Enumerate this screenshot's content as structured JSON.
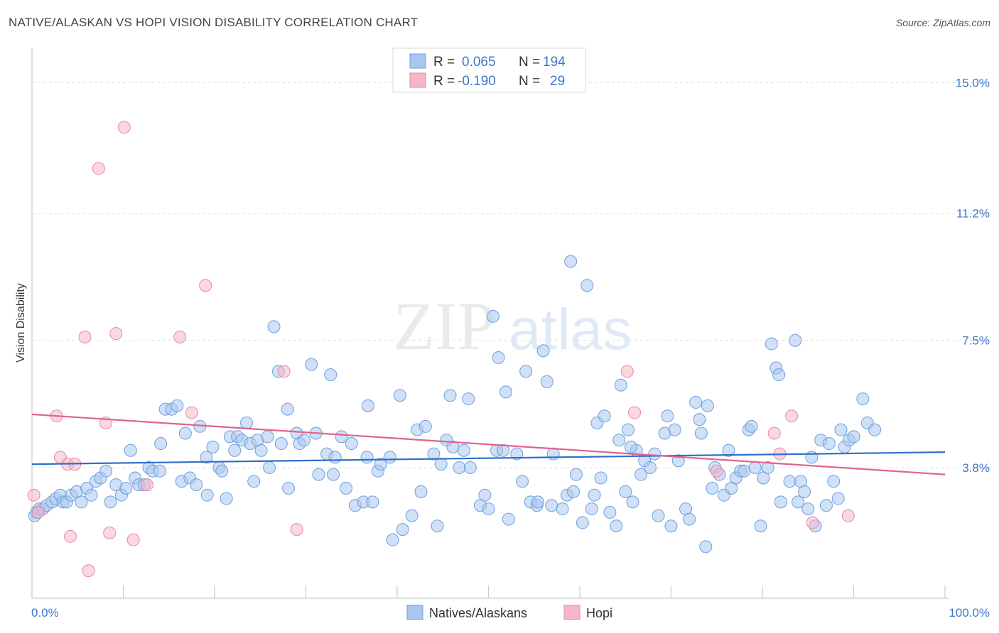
{
  "title": "NATIVE/ALASKAN VS HOPI VISION DISABILITY CORRELATION CHART",
  "source": "Source: ZipAtlas.com",
  "watermark": {
    "zip": "ZIP",
    "atlas": "atlas"
  },
  "chart_data": {
    "type": "scatter",
    "title": "NATIVE/ALASKAN VS HOPI VISION DISABILITY CORRELATION CHART",
    "xlabel": "",
    "ylabel": "Vision Disability",
    "xlim": [
      0,
      100
    ],
    "ylim": [
      0,
      16
    ],
    "x_tick_labels": [
      {
        "value": 0,
        "label": "0.0%"
      },
      {
        "value": 100,
        "label": "100.0%"
      }
    ],
    "y_ticks": [
      {
        "value": 3.8,
        "label": "3.8%"
      },
      {
        "value": 7.5,
        "label": "7.5%"
      },
      {
        "value": 11.2,
        "label": "11.2%"
      },
      {
        "value": 15.0,
        "label": "15.0%"
      }
    ],
    "grid": true,
    "legend_top": [
      {
        "r_label": "R =",
        "r": "0.065",
        "n_label": "N =",
        "n": "194",
        "color": "#a9c7ee"
      },
      {
        "r_label": "R =",
        "r": "-0.190",
        "n_label": "N =",
        "n": "29",
        "color": "#f5b6c8"
      }
    ],
    "series": [
      {
        "name": "Natives/Alaskans",
        "color": "#a9c7ee",
        "stroke": "#6d9fdc",
        "trend": {
          "x": [
            0,
            100
          ],
          "y": [
            3.9,
            4.25
          ],
          "color": "#2f6fcc"
        },
        "points": [
          [
            0.3,
            2.4
          ],
          [
            0.5,
            2.5
          ],
          [
            0.8,
            2.6
          ],
          [
            1.2,
            2.6
          ],
          [
            1.6,
            2.7
          ],
          [
            2.2,
            2.8
          ],
          [
            2.6,
            2.9
          ],
          [
            3.1,
            3.0
          ],
          [
            3.4,
            2.8
          ],
          [
            3.8,
            2.8
          ],
          [
            4.3,
            3.0
          ],
          [
            4.9,
            3.1
          ],
          [
            5.4,
            2.8
          ],
          [
            6.0,
            3.2
          ],
          [
            6.5,
            3.0
          ],
          [
            7.0,
            3.4
          ],
          [
            7.5,
            3.5
          ],
          [
            8.1,
            3.7
          ],
          [
            8.6,
            2.8
          ],
          [
            9.2,
            3.3
          ],
          [
            9.8,
            3.0
          ],
          [
            10.3,
            3.2
          ],
          [
            10.8,
            4.3
          ],
          [
            11.3,
            3.5
          ],
          [
            11.7,
            3.3
          ],
          [
            12.3,
            3.3
          ],
          [
            12.8,
            3.8
          ],
          [
            13.2,
            3.7
          ],
          [
            14.0,
            3.7
          ],
          [
            14.1,
            4.5
          ],
          [
            14.6,
            5.5
          ],
          [
            15.3,
            5.5
          ],
          [
            15.9,
            5.6
          ],
          [
            16.4,
            3.4
          ],
          [
            16.8,
            4.8
          ],
          [
            17.3,
            3.5
          ],
          [
            18.0,
            3.3
          ],
          [
            18.4,
            5.0
          ],
          [
            19.1,
            4.1
          ],
          [
            19.2,
            3.0
          ],
          [
            19.8,
            4.4
          ],
          [
            20.5,
            3.8
          ],
          [
            20.8,
            3.7
          ],
          [
            21.7,
            4.7
          ],
          [
            22.2,
            4.3
          ],
          [
            22.5,
            4.7
          ],
          [
            23.0,
            4.6
          ],
          [
            23.5,
            5.1
          ],
          [
            23.9,
            4.5
          ],
          [
            24.3,
            3.4
          ],
          [
            24.7,
            4.6
          ],
          [
            25.1,
            4.3
          ],
          [
            25.8,
            4.7
          ],
          [
            26.0,
            3.8
          ],
          [
            26.5,
            7.9
          ],
          [
            27.0,
            6.6
          ],
          [
            27.3,
            4.5
          ],
          [
            28.0,
            5.5
          ],
          [
            28.1,
            3.2
          ],
          [
            29.0,
            4.8
          ],
          [
            29.3,
            4.5
          ],
          [
            29.8,
            4.6
          ],
          [
            30.6,
            6.8
          ],
          [
            31.1,
            4.8
          ],
          [
            31.4,
            3.6
          ],
          [
            32.3,
            4.2
          ],
          [
            32.7,
            6.5
          ],
          [
            33.0,
            3.6
          ],
          [
            33.9,
            4.7
          ],
          [
            34.4,
            3.2
          ],
          [
            35.0,
            4.5
          ],
          [
            35.4,
            2.7
          ],
          [
            36.3,
            2.8
          ],
          [
            36.7,
            4.1
          ],
          [
            36.8,
            5.6
          ],
          [
            37.3,
            2.8
          ],
          [
            37.9,
            3.7
          ],
          [
            38.2,
            3.9
          ],
          [
            39.2,
            4.1
          ],
          [
            39.5,
            1.7
          ],
          [
            40.3,
            5.9
          ],
          [
            40.6,
            2.0
          ],
          [
            41.6,
            2.4
          ],
          [
            42.2,
            4.9
          ],
          [
            42.6,
            3.1
          ],
          [
            43.1,
            5.0
          ],
          [
            44.0,
            4.2
          ],
          [
            44.4,
            2.1
          ],
          [
            44.8,
            3.9
          ],
          [
            45.4,
            4.6
          ],
          [
            45.8,
            5.9
          ],
          [
            46.1,
            4.4
          ],
          [
            46.8,
            3.8
          ],
          [
            47.3,
            4.3
          ],
          [
            47.8,
            5.8
          ],
          [
            48.0,
            3.8
          ],
          [
            49.1,
            2.7
          ],
          [
            49.6,
            3.0
          ],
          [
            50.0,
            2.6
          ],
          [
            50.5,
            8.2
          ],
          [
            50.9,
            4.3
          ],
          [
            51.1,
            7.0
          ],
          [
            51.6,
            4.3
          ],
          [
            51.9,
            6.0
          ],
          [
            52.2,
            2.3
          ],
          [
            53.1,
            4.2
          ],
          [
            53.7,
            3.4
          ],
          [
            54.1,
            6.6
          ],
          [
            54.6,
            2.8
          ],
          [
            55.3,
            2.7
          ],
          [
            55.4,
            2.8
          ],
          [
            56.0,
            7.2
          ],
          [
            56.4,
            6.3
          ],
          [
            57.1,
            4.2
          ],
          [
            58.1,
            2.6
          ],
          [
            58.6,
            3.0
          ],
          [
            59.0,
            9.8
          ],
          [
            59.3,
            3.1
          ],
          [
            59.6,
            3.6
          ],
          [
            60.3,
            2.2
          ],
          [
            60.8,
            9.1
          ],
          [
            61.3,
            2.6
          ],
          [
            61.6,
            3.0
          ],
          [
            61.9,
            5.1
          ],
          [
            62.3,
            3.5
          ],
          [
            62.7,
            5.3
          ],
          [
            63.3,
            2.5
          ],
          [
            64.0,
            2.1
          ],
          [
            64.3,
            4.6
          ],
          [
            64.5,
            6.2
          ],
          [
            65.0,
            3.1
          ],
          [
            65.3,
            4.9
          ],
          [
            65.8,
            2.8
          ],
          [
            66.2,
            4.3
          ],
          [
            66.7,
            3.6
          ],
          [
            67.1,
            4.0
          ],
          [
            67.7,
            3.8
          ],
          [
            68.2,
            4.2
          ],
          [
            68.6,
            2.4
          ],
          [
            69.3,
            4.8
          ],
          [
            69.6,
            5.3
          ],
          [
            70.0,
            2.1
          ],
          [
            70.4,
            4.9
          ],
          [
            70.8,
            4.0
          ],
          [
            71.6,
            2.6
          ],
          [
            72.0,
            2.3
          ],
          [
            72.7,
            5.7
          ],
          [
            73.1,
            5.2
          ],
          [
            73.3,
            4.8
          ],
          [
            74.0,
            5.6
          ],
          [
            74.5,
            3.2
          ],
          [
            74.8,
            3.8
          ],
          [
            75.3,
            3.6
          ],
          [
            75.8,
            3.0
          ],
          [
            76.3,
            4.3
          ],
          [
            76.6,
            3.2
          ],
          [
            77.1,
            3.5
          ],
          [
            77.6,
            3.7
          ],
          [
            78.0,
            3.7
          ],
          [
            78.5,
            4.9
          ],
          [
            78.8,
            5.0
          ],
          [
            79.2,
            3.8
          ],
          [
            79.8,
            2.1
          ],
          [
            80.1,
            3.5
          ],
          [
            80.6,
            3.8
          ],
          [
            81.0,
            7.4
          ],
          [
            81.5,
            6.7
          ],
          [
            81.8,
            6.5
          ],
          [
            82.0,
            2.8
          ],
          [
            83.0,
            3.4
          ],
          [
            83.6,
            7.5
          ],
          [
            83.9,
            2.8
          ],
          [
            84.2,
            3.4
          ],
          [
            84.6,
            3.1
          ],
          [
            85.0,
            2.6
          ],
          [
            85.4,
            4.1
          ],
          [
            85.8,
            2.1
          ],
          [
            86.4,
            4.6
          ],
          [
            87.0,
            2.7
          ],
          [
            87.3,
            4.5
          ],
          [
            87.8,
            3.4
          ],
          [
            88.3,
            2.9
          ],
          [
            88.6,
            4.9
          ],
          [
            89.0,
            4.4
          ],
          [
            89.5,
            4.6
          ],
          [
            90.0,
            4.7
          ],
          [
            91.0,
            5.8
          ],
          [
            91.5,
            5.1
          ],
          [
            92.3,
            4.9
          ],
          [
            65.6,
            4.4
          ],
          [
            73.8,
            1.5
          ],
          [
            56.9,
            2.7
          ],
          [
            33.2,
            4.1
          ],
          [
            21.3,
            2.9
          ]
        ]
      },
      {
        "name": "Hopi",
        "color": "#f5b6c8",
        "stroke": "#e68aa5",
        "trend": {
          "x": [
            0,
            100
          ],
          "y": [
            5.35,
            3.6
          ],
          "color": "#e0648f"
        },
        "points": [
          [
            0.2,
            3.0
          ],
          [
            0.7,
            2.5
          ],
          [
            2.7,
            5.3
          ],
          [
            3.1,
            4.1
          ],
          [
            3.9,
            3.9
          ],
          [
            4.7,
            3.9
          ],
          [
            4.2,
            1.8
          ],
          [
            5.8,
            7.6
          ],
          [
            6.2,
            0.8
          ],
          [
            7.3,
            12.5
          ],
          [
            8.1,
            5.1
          ],
          [
            8.5,
            1.9
          ],
          [
            9.2,
            7.7
          ],
          [
            10.1,
            13.7
          ],
          [
            11.1,
            1.7
          ],
          [
            12.6,
            3.3
          ],
          [
            16.2,
            7.6
          ],
          [
            17.5,
            5.4
          ],
          [
            19.0,
            9.1
          ],
          [
            27.6,
            6.6
          ],
          [
            29.0,
            2.0
          ],
          [
            65.2,
            6.6
          ],
          [
            66.0,
            5.4
          ],
          [
            75.0,
            3.7
          ],
          [
            81.3,
            4.8
          ],
          [
            81.9,
            4.2
          ],
          [
            83.2,
            5.3
          ],
          [
            85.5,
            2.2
          ],
          [
            89.4,
            2.4
          ]
        ]
      }
    ]
  },
  "bottom_legend": [
    {
      "label": "Natives/Alaskans",
      "color": "#a9c7ee",
      "stroke": "#6d9fdc"
    },
    {
      "label": "Hopi",
      "color": "#f5b6c8",
      "stroke": "#e68aa5"
    }
  ]
}
